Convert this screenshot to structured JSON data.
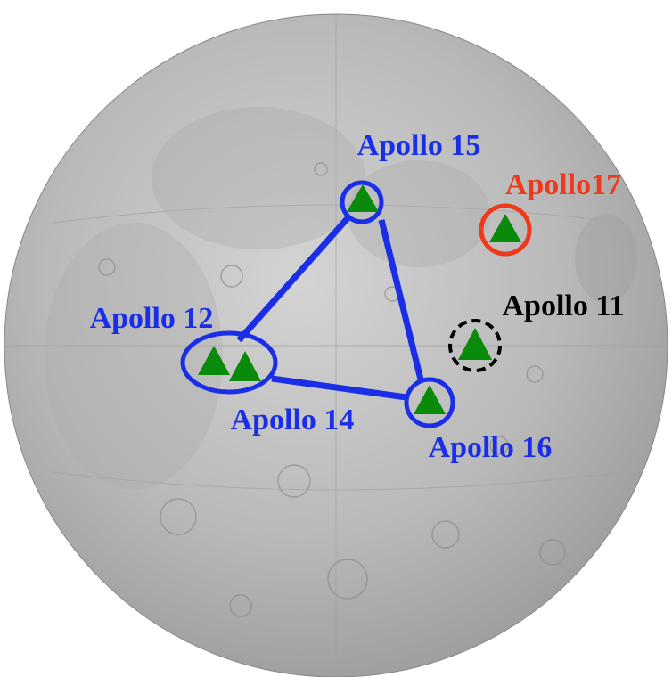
{
  "sites": [
    {
      "label": "Apollo 15"
    },
    {
      "label": "Apollo17"
    },
    {
      "label": "Apollo 11"
    },
    {
      "label": "Apollo 12"
    },
    {
      "label": "Apollo 14"
    },
    {
      "label": "Apollo 16"
    }
  ]
}
